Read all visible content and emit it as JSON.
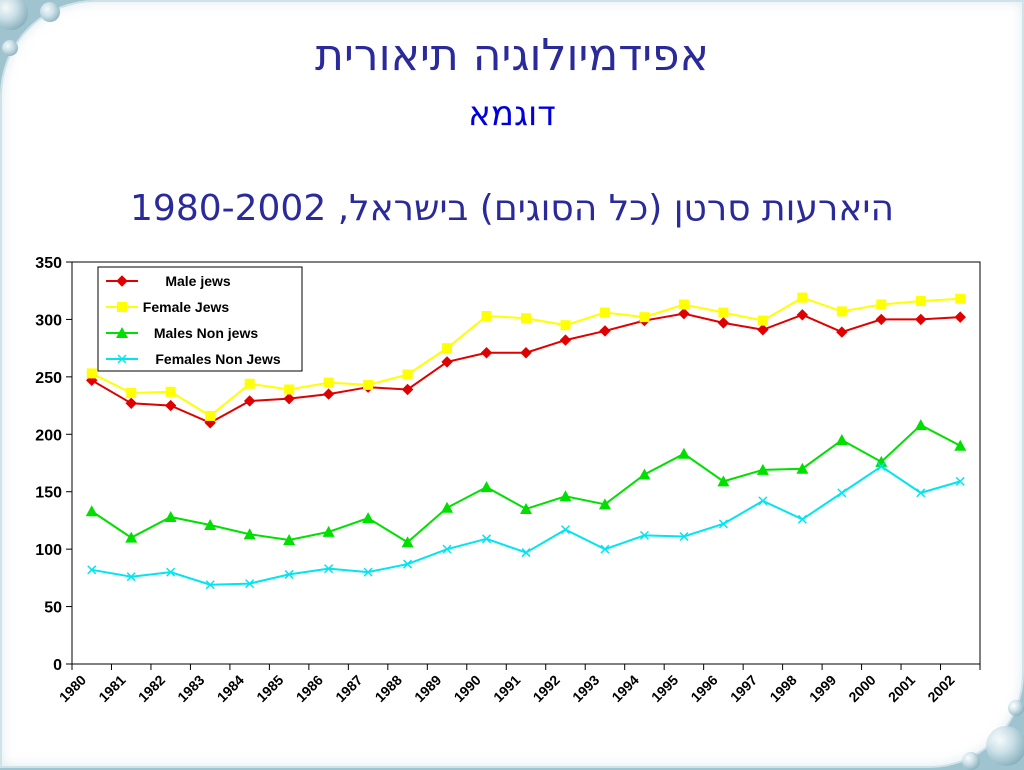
{
  "slide": {
    "title": "אפידמיולוגיה תיאורית",
    "subtitle": "דוגמא",
    "chart_heading": "היארעות סרטן (כל הסוגים) בישראל, 1980-2002"
  },
  "chart_data": {
    "type": "line",
    "title": "היארעות סרטן (כל הסוגים) בישראל, 1980-2002",
    "xlabel": "",
    "ylabel": "",
    "ylim": [
      0,
      350
    ],
    "y_ticks": [
      0,
      50,
      100,
      150,
      200,
      250,
      300,
      350
    ],
    "x_tick_labels": [
      "1980",
      "1981",
      "1982",
      "1983",
      "1984",
      "1985",
      "1986",
      "1987",
      "1988",
      "1989",
      "1990",
      "1991",
      "1992",
      "1993",
      "1994",
      "1995",
      "1996",
      "1997",
      "1998",
      "1999",
      "2000",
      "2001",
      "2002"
    ],
    "categories": [
      "1980",
      "1981",
      "1982",
      "1983",
      "1984",
      "1985",
      "1986",
      "1987",
      "1988",
      "1989",
      "1990",
      "1991",
      "1992",
      "1993",
      "1994",
      "1995",
      "1996",
      "1997",
      "1998",
      "1999",
      "2000",
      "2001",
      "2002"
    ],
    "grid": false,
    "legend_position": "top-left",
    "series": [
      {
        "name": "Male jews",
        "color": "#e00000",
        "marker": "diamond",
        "values": [
          247,
          227,
          225,
          210,
          229,
          231,
          235,
          241,
          239,
          263,
          271,
          271,
          282,
          290,
          299,
          305,
          297,
          291,
          304,
          289,
          300,
          300,
          302
        ]
      },
      {
        "name": "Female Jews",
        "color": "#ffff00",
        "marker": "square",
        "values": [
          253,
          236,
          237,
          216,
          244,
          239,
          245,
          243,
          252,
          275,
          303,
          301,
          295,
          306,
          302,
          313,
          306,
          299,
          319,
          307,
          313,
          316,
          318
        ]
      },
      {
        "name": "Males Non jews",
        "color": "#00e000",
        "marker": "triangle",
        "values": [
          133,
          110,
          128,
          121,
          113,
          108,
          115,
          127,
          106,
          136,
          154,
          135,
          146,
          139,
          165,
          183,
          159,
          169,
          170,
          195,
          176,
          208,
          190
        ]
      },
      {
        "name": "Females Non Jews",
        "color": "#00e5f0",
        "marker": "x",
        "values": [
          82,
          76,
          80,
          69,
          70,
          78,
          83,
          80,
          87,
          100,
          109,
          97,
          117,
          100,
          112,
          111,
          122,
          142,
          126,
          149,
          172,
          149,
          159
        ]
      }
    ]
  }
}
